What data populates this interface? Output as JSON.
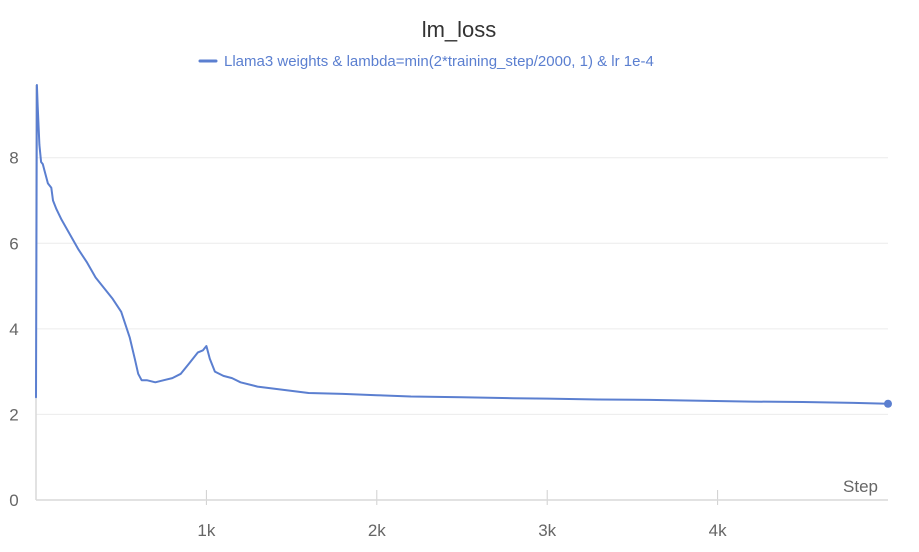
{
  "chart_data": {
    "type": "line",
    "title": "lm_loss",
    "xlabel": "Step",
    "ylabel": "",
    "xlim": [
      0,
      5000
    ],
    "ylim": [
      0,
      9.7
    ],
    "x_ticks": [
      1000,
      2000,
      3000,
      4000
    ],
    "x_tick_labels": [
      "1k",
      "2k",
      "3k",
      "4k"
    ],
    "y_ticks": [
      0,
      2,
      4,
      6,
      8
    ],
    "y_tick_labels": [
      "0",
      "2",
      "4",
      "6",
      "8"
    ],
    "grid": true,
    "legend_position": "top-center",
    "series": [
      {
        "name": "Llama3 weights & lambda=min(2*training_step/2000, 1) & lr 1e-4",
        "color": "#5b7fd0",
        "x": [
          0,
          5,
          10,
          20,
          30,
          40,
          50,
          70,
          90,
          100,
          120,
          150,
          200,
          250,
          300,
          350,
          400,
          450,
          500,
          550,
          580,
          600,
          620,
          650,
          700,
          750,
          800,
          850,
          900,
          950,
          980,
          1000,
          1020,
          1050,
          1100,
          1150,
          1200,
          1300,
          1400,
          1500,
          1600,
          1800,
          2000,
          2200,
          2500,
          2800,
          3000,
          3300,
          3600,
          3900,
          4200,
          4500,
          4800,
          5000
        ],
        "y": [
          2.4,
          9.7,
          9.2,
          8.3,
          7.9,
          7.85,
          7.7,
          7.4,
          7.3,
          7.0,
          6.8,
          6.55,
          6.2,
          5.85,
          5.55,
          5.2,
          4.95,
          4.7,
          4.4,
          3.8,
          3.3,
          2.95,
          2.8,
          2.8,
          2.75,
          2.8,
          2.85,
          2.95,
          3.2,
          3.45,
          3.5,
          3.6,
          3.3,
          3.0,
          2.9,
          2.85,
          2.75,
          2.65,
          2.6,
          2.55,
          2.5,
          2.48,
          2.45,
          2.42,
          2.4,
          2.38,
          2.37,
          2.35,
          2.34,
          2.32,
          2.3,
          2.29,
          2.27,
          2.25
        ]
      }
    ]
  }
}
